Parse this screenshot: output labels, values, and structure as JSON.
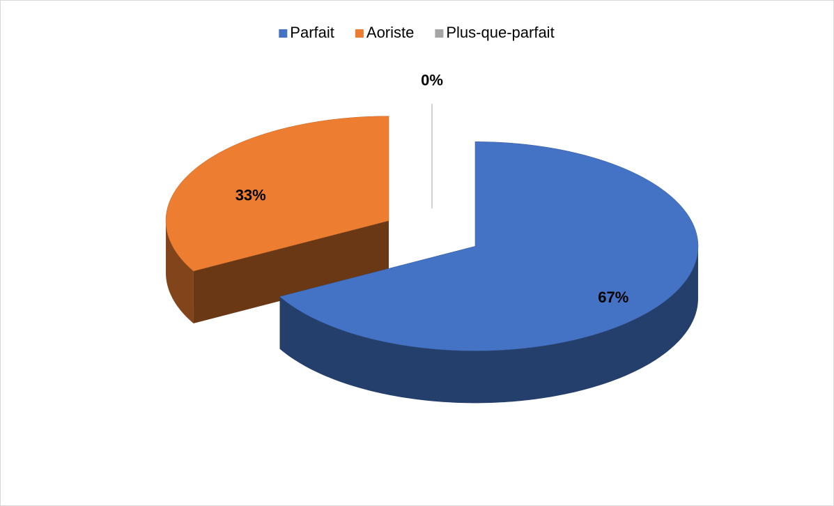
{
  "chart_data": {
    "type": "pie",
    "categories": [
      "Parfait",
      "Aoriste",
      "Plus-que-parfait"
    ],
    "values": [
      67,
      33,
      0
    ],
    "value_labels": [
      "67%",
      "33%",
      "0%"
    ],
    "colors": [
      "#4472c4",
      "#ed7d31",
      "#a5a5a5"
    ],
    "legend": "top"
  }
}
